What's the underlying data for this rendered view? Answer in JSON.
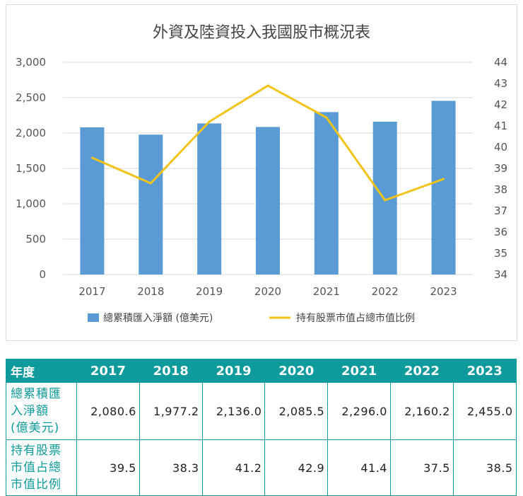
{
  "chart_data": {
    "type": "bar+line",
    "title": "外資及陸資投入我國股市概況表",
    "categories": [
      "2017",
      "2018",
      "2019",
      "2020",
      "2021",
      "2022",
      "2023"
    ],
    "series": [
      {
        "name": "總累積匯入淨額 (億美元)",
        "type": "bar",
        "axis": "left",
        "values": [
          2080.6,
          1977.2,
          2136.0,
          2085.5,
          2296.0,
          2160.2,
          2455.0
        ]
      },
      {
        "name": "持有股票市值占總市值比例",
        "type": "line",
        "axis": "right",
        "values": [
          39.5,
          38.3,
          41.2,
          42.9,
          41.4,
          37.5,
          38.5
        ]
      }
    ],
    "y_left": {
      "ylim": [
        0,
        3000
      ],
      "ticks": [
        "0",
        "500",
        "1,000",
        "1,500",
        "2,000",
        "2,500",
        "3,000"
      ]
    },
    "y_right": {
      "ylim": [
        34,
        44
      ],
      "ticks": [
        "34",
        "35",
        "36",
        "37",
        "38",
        "39",
        "40",
        "41",
        "42",
        "43",
        "44"
      ]
    },
    "grid": true,
    "legend": "bottom",
    "colors": {
      "bar": "#5b9bd5",
      "line": "#f2c318",
      "grid": "#d9d9d9"
    }
  },
  "table": {
    "header_label": "年度",
    "years": [
      "2017",
      "2018",
      "2019",
      "2020",
      "2021",
      "2022",
      "2023"
    ],
    "rows": [
      {
        "label": [
          "總累積匯",
          "入淨額",
          "(億美元)"
        ],
        "values": [
          "2,080.6",
          "1,977.2",
          "2,136.0",
          "2,085.5",
          "2,296.0",
          "2,160.2",
          "2,455.0"
        ]
      },
      {
        "label": [
          "持有股票",
          "市值占總",
          "市值比例"
        ],
        "values": [
          "39.5",
          "38.3",
          "41.2",
          "42.9",
          "41.4",
          "37.5",
          "38.5"
        ]
      }
    ],
    "colors": {
      "header_bg": "#0f9a9c",
      "border": "#0f9a9c",
      "label_text": "#0f9a9c"
    }
  }
}
